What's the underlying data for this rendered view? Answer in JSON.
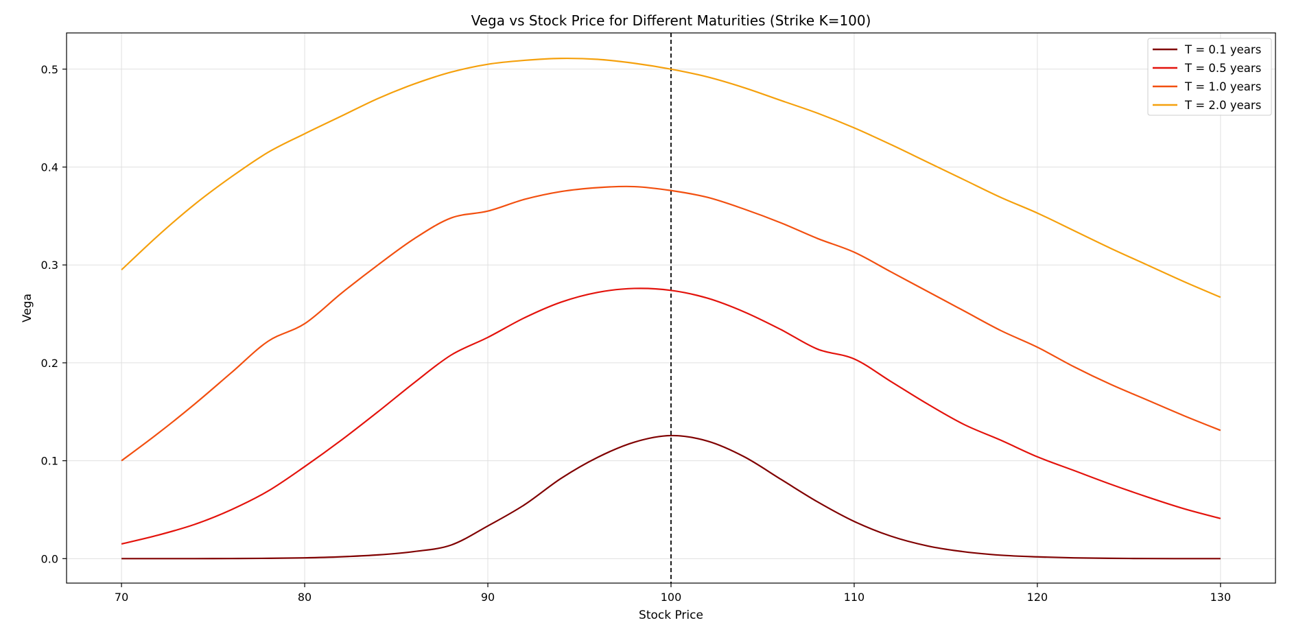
{
  "chart_data": {
    "type": "line",
    "title": "Vega vs Stock Price for Different Maturities (Strike K=100)",
    "xlabel": "Stock Price",
    "ylabel": "Vega",
    "xlim": [
      67,
      133
    ],
    "ylim": [
      -0.025,
      0.537
    ],
    "xticks": [
      70,
      80,
      90,
      100,
      110,
      120,
      130
    ],
    "yticks": [
      0.0,
      0.1,
      0.2,
      0.3,
      0.4,
      0.5
    ],
    "x": [
      70,
      72,
      74,
      76,
      78,
      80,
      82,
      84,
      86,
      88,
      90,
      92,
      94,
      96,
      98,
      100,
      102,
      104,
      106,
      108,
      110,
      112,
      114,
      116,
      118,
      120,
      122,
      124,
      126,
      128,
      130
    ],
    "grid": true,
    "legend_position": "top-right",
    "reference_line": {
      "x": 100,
      "style": "dashed",
      "color": "#000000"
    },
    "series": [
      {
        "name": "T = 0.1 years",
        "color": "#800000",
        "values": [
          0.0,
          0.0,
          0.0,
          0.0001,
          0.0003,
          0.0008,
          0.0019,
          0.0038,
          0.0073,
          0.0139,
          0.0334,
          0.055,
          0.082,
          0.1035,
          0.119,
          0.1257,
          0.12,
          0.104,
          0.081,
          0.058,
          0.038,
          0.023,
          0.013,
          0.007,
          0.0035,
          0.0018,
          0.0008,
          0.0003,
          0.0001,
          0.0,
          0.0
        ]
      },
      {
        "name": "T = 0.5 years",
        "color": "#e3120b",
        "values": [
          0.015,
          0.024,
          0.035,
          0.05,
          0.069,
          0.094,
          0.121,
          0.15,
          0.18,
          0.208,
          0.226,
          0.246,
          0.262,
          0.272,
          0.276,
          0.274,
          0.266,
          0.252,
          0.234,
          0.214,
          0.204,
          0.181,
          0.158,
          0.137,
          0.121,
          0.104,
          0.09,
          0.076,
          0.063,
          0.051,
          0.041
        ]
      },
      {
        "name": "T = 1.0 years",
        "color": "#f24f0f",
        "values": [
          0.1,
          0.128,
          0.158,
          0.19,
          0.222,
          0.24,
          0.271,
          0.3,
          0.327,
          0.348,
          0.355,
          0.367,
          0.375,
          0.379,
          0.38,
          0.376,
          0.369,
          0.357,
          0.343,
          0.327,
          0.313,
          0.293,
          0.273,
          0.253,
          0.233,
          0.216,
          0.196,
          0.178,
          0.162,
          0.146,
          0.131
        ]
      },
      {
        "name": "T = 2.0 years",
        "color": "#f5a00c",
        "values": [
          0.295,
          0.33,
          0.362,
          0.39,
          0.415,
          0.434,
          0.452,
          0.47,
          0.485,
          0.497,
          0.505,
          0.509,
          0.511,
          0.51,
          0.506,
          0.5,
          0.492,
          0.481,
          0.468,
          0.455,
          0.44,
          0.423,
          0.405,
          0.387,
          0.369,
          0.353,
          0.335,
          0.317,
          0.3,
          0.283,
          0.267
        ]
      }
    ]
  }
}
